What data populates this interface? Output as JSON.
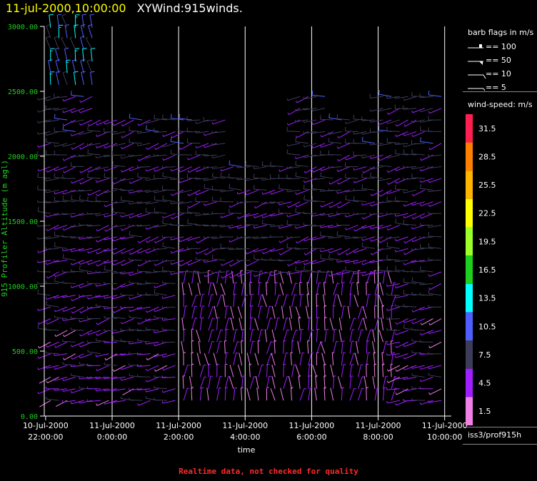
{
  "header": {
    "date": "11-jul-2000,10:00:00",
    "name": "XYWind:915winds."
  },
  "footer": {
    "note": "Realtime data, not checked for quality"
  },
  "source": "iss3/prof915h",
  "legend": {
    "barb_title": "barb flags in m/s",
    "barbs": [
      {
        "label": "== 100",
        "kind": "flag"
      },
      {
        "label": "== 50",
        "kind": "triangle"
      },
      {
        "label": "== 10",
        "kind": "full"
      },
      {
        "label": "== 5",
        "kind": "half"
      }
    ],
    "speed_title": "wind-speed: m/s",
    "speed_levels": [
      {
        "label": "31.5",
        "color": "#ff1f4f"
      },
      {
        "label": "28.5",
        "color": "#ff8000"
      },
      {
        "label": "25.5",
        "color": "#ffb400"
      },
      {
        "label": "22.5",
        "color": "#ffff00"
      },
      {
        "label": "19.5",
        "color": "#9bff2a"
      },
      {
        "label": "16.5",
        "color": "#1fcf1f"
      },
      {
        "label": "13.5",
        "color": "#00ffff"
      },
      {
        "label": "10.5",
        "color": "#4f5fff"
      },
      {
        "label": "7.5",
        "color": "#3c3c5a"
      },
      {
        "label": "4.5",
        "color": "#9f1fff"
      },
      {
        "label": "1.5",
        "color": "#f07fe6"
      }
    ]
  },
  "chart_data": {
    "type": "wind-barb",
    "ylabel": "915 Profiler Altitude (m agl)",
    "xlabel": "time",
    "ylim": [
      0,
      3000
    ],
    "y_ticks": [
      "0.00",
      "500.00",
      "1000.00",
      "1500.00",
      "2000.00",
      "2500.00",
      "3000.00"
    ],
    "x_ticks": [
      {
        "date": "10-Jul-2000",
        "time": "22:00:00"
      },
      {
        "date": "11-Jul-2000",
        "time": "0:00:00"
      },
      {
        "date": "11-Jul-2000",
        "time": "2:00:00"
      },
      {
        "date": "11-Jul-2000",
        "time": "4:00:00"
      },
      {
        "date": "11-Jul-2000",
        "time": "6:00:00"
      },
      {
        "date": "11-Jul-2000",
        "time": "8:00:00"
      },
      {
        "date": "11-Jul-2000",
        "time": "10:00:00"
      }
    ],
    "x_range_hours": [
      -2.04,
      10.2
    ],
    "grid": "vertical-only",
    "profiles_per_hour": 4,
    "height_levels_m": [
      120,
      210,
      300,
      390,
      480,
      570,
      660,
      750,
      840,
      930,
      1020,
      1110,
      1200,
      1290,
      1380,
      1470,
      1560,
      1650,
      1740,
      1830,
      1920,
      2010,
      2100,
      2190,
      2280,
      2370,
      2460,
      2550,
      2640,
      2730,
      2820,
      2910,
      2990
    ]
  },
  "colors": {
    "axis": "#ffffff",
    "y_tick_label": "#1fcf1f",
    "title_date": "#ffff00",
    "footer": "#ff2a2a"
  }
}
